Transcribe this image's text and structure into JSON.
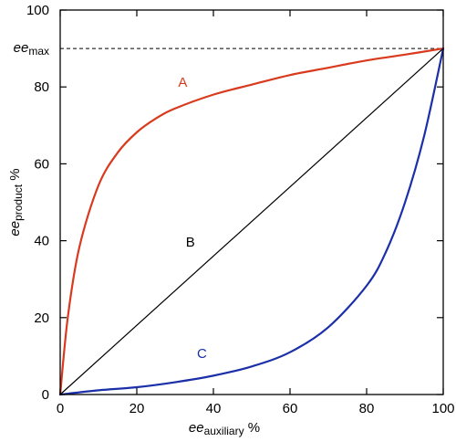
{
  "chart_data": {
    "type": "line",
    "xlabel": {
      "main": "ee",
      "sub": "auxiliary",
      "unit": " %"
    },
    "ylabel": {
      "main": "ee",
      "sub": "product",
      "unit": " %"
    },
    "xlim": [
      0,
      100
    ],
    "ylim": [
      0,
      100
    ],
    "x_ticks": [
      0,
      20,
      40,
      60,
      80,
      100
    ],
    "y_ticks": [
      0,
      20,
      40,
      60,
      80,
      100
    ],
    "grid": false,
    "reference_line": {
      "label_main": "ee",
      "label_sub": "max",
      "y": 90,
      "style": "dashed",
      "color": "#000000"
    },
    "series": [
      {
        "name": "A",
        "color": "#d93a1e",
        "x": [
          0,
          2,
          5,
          10,
          15,
          20,
          25,
          30,
          40,
          50,
          60,
          70,
          80,
          90,
          100
        ],
        "y": [
          0,
          20.2,
          38.3,
          54.4,
          62.9,
          68.2,
          71.8,
          74.4,
          78.0,
          80.6,
          83.1,
          85.0,
          86.9,
          88.4,
          90.0
        ]
      },
      {
        "name": "B",
        "color": "#000000",
        "x": [
          0,
          100
        ],
        "y": [
          0,
          90
        ]
      },
      {
        "name": "C",
        "color": "#1b2fa8",
        "x": [
          0,
          10,
          20,
          30,
          40,
          50,
          60,
          70,
          80,
          85,
          90,
          95,
          100
        ],
        "y": [
          0,
          1.1,
          1.9,
          3.2,
          4.9,
          7.3,
          11.0,
          17.5,
          28.3,
          37.0,
          49.9,
          67.2,
          90.0
        ]
      }
    ],
    "annotations": [
      {
        "text": "A",
        "x": 32,
        "y": 80,
        "color": "#d93a1e"
      },
      {
        "text": "B",
        "x": 34,
        "y": 38.5,
        "color": "#000000"
      },
      {
        "text": "C",
        "x": 37,
        "y": 9.5,
        "color": "#1b2fa8"
      }
    ]
  }
}
